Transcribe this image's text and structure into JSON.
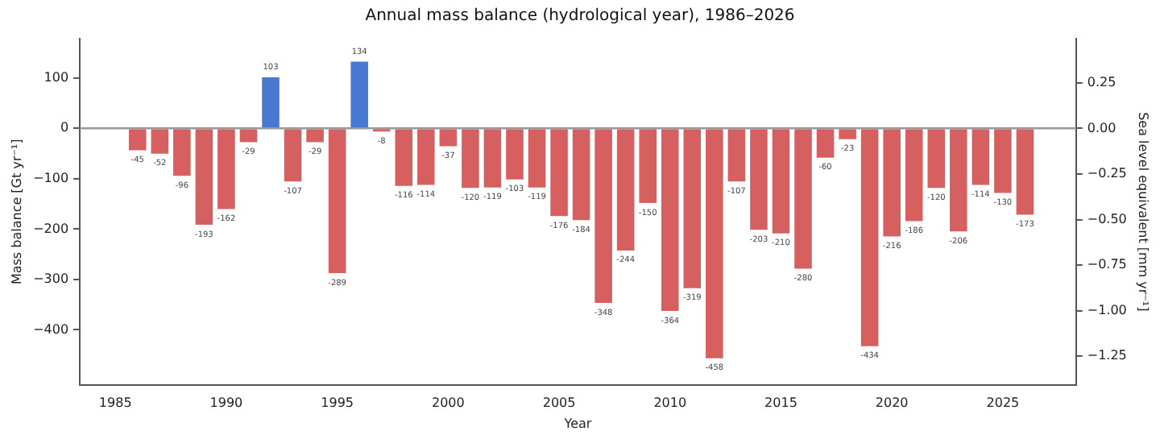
{
  "chart_data": {
    "type": "bar",
    "title": "Annual mass balance (hydrological year), 1986–2026",
    "xlabel": "Year",
    "ylabel": "Mass balance [Gt yr⁻¹]",
    "y2label": "Sea level equivalent [mm yr⁻¹]",
    "x": [
      1986,
      1987,
      1988,
      1989,
      1990,
      1991,
      1992,
      1993,
      1994,
      1995,
      1996,
      1997,
      1998,
      1999,
      2000,
      2001,
      2002,
      2003,
      2004,
      2005,
      2006,
      2007,
      2008,
      2009,
      2010,
      2011,
      2012,
      2013,
      2014,
      2015,
      2016,
      2017,
      2018,
      2019,
      2020,
      2021,
      2022,
      2023,
      2024,
      2025,
      2026
    ],
    "values": [
      -45,
      -52,
      -96,
      -193,
      -162,
      -29,
      103,
      -107,
      -29,
      -289,
      134,
      -8,
      -116,
      -114,
      -37,
      -120,
      -119,
      -103,
      -119,
      -176,
      -184,
      -348,
      -244,
      -150,
      -364,
      -319,
      -458,
      -107,
      -203,
      -210,
      -280,
      -60,
      -23,
      -434,
      -216,
      -186,
      -120,
      -206,
      -114,
      -130,
      -173
    ],
    "colors": [
      "#d65f5f",
      "#d65f5f",
      "#d65f5f",
      "#d65f5f",
      "#d65f5f",
      "#d65f5f",
      "#4878d0",
      "#d65f5f",
      "#d65f5f",
      "#d65f5f",
      "#4878d0",
      "#d65f5f",
      "#d65f5f",
      "#d65f5f",
      "#d65f5f",
      "#d65f5f",
      "#d65f5f",
      "#d65f5f",
      "#d65f5f",
      "#d65f5f",
      "#d65f5f",
      "#d65f5f",
      "#d65f5f",
      "#d65f5f",
      "#d65f5f",
      "#d65f5f",
      "#d65f5f",
      "#d65f5f",
      "#d65f5f",
      "#d65f5f",
      "#d65f5f",
      "#d65f5f",
      "#d65f5f",
      "#d65f5f",
      "#d65f5f",
      "#d65f5f",
      "#d65f5f",
      "#d65f5f",
      "#d65f5f",
      "#d65f5f",
      "#d65f5f"
    ],
    "data_labels": true,
    "xlim": [
      1983.4,
      2028.3
    ],
    "xticks": [
      1985,
      1990,
      1995,
      2000,
      2005,
      2010,
      2015,
      2020,
      2025
    ],
    "ylim": [
      -509,
      178
    ],
    "yticks": [
      -400,
      -300,
      -200,
      -100,
      0,
      100
    ],
    "y2lim": [
      -1.406,
      0.492
    ],
    "y2ticks": [
      {
        "value": -1.25,
        "label": "−1.25"
      },
      {
        "value": -1,
        "label": "−1.00"
      },
      {
        "value": -0.75,
        "label": "−0.75"
      },
      {
        "value": -0.5,
        "label": "−0.50"
      },
      {
        "value": -0.25,
        "label": "−0.25"
      },
      {
        "value": 0,
        "label": "0.00"
      },
      {
        "value": 0.25,
        "label": "0.25"
      }
    ],
    "ref_lines": [
      {
        "axis": "y",
        "value": 0,
        "color": "#999999"
      }
    ],
    "grid": false,
    "legend": false
  }
}
